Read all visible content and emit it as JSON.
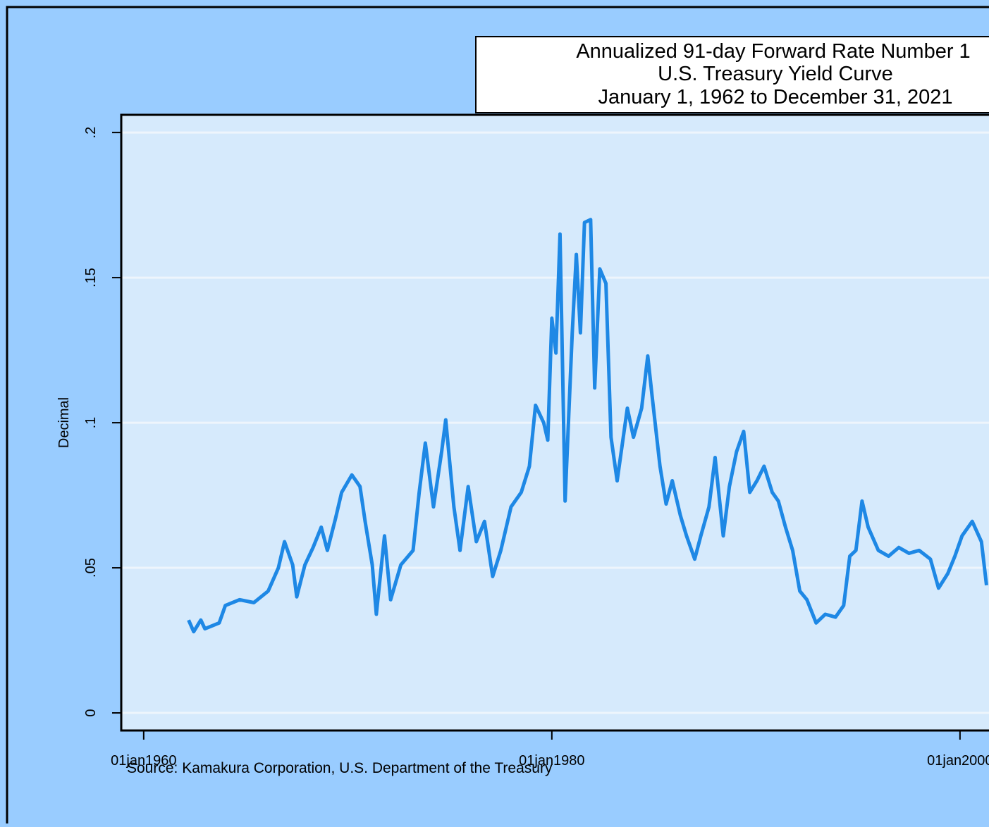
{
  "chart_data": {
    "type": "line",
    "title": [
      "Annualized 91-day Forward Rate Number 1",
      "U.S. Treasury Yield Curve",
      "January 1, 1962 to December 31, 2021"
    ],
    "y_label": "Decimal",
    "note": "Source: Kamakura Corporation, U.S. Department of the Treasury",
    "x": [
      1962.2,
      1962.45,
      1962.8,
      1963.0,
      1963.7,
      1964.0,
      1964.7,
      1965.4,
      1966.1,
      1966.6,
      1966.9,
      1967.3,
      1967.5,
      1967.9,
      1968.3,
      1968.7,
      1969.0,
      1969.4,
      1969.7,
      1970.2,
      1970.6,
      1970.85,
      1971.2,
      1971.4,
      1971.8,
      1972.1,
      1972.6,
      1973.2,
      1973.5,
      1973.8,
      1974.2,
      1974.6,
      1974.8,
      1975.2,
      1975.5,
      1975.9,
      1976.3,
      1976.7,
      1977.1,
      1977.5,
      1978.0,
      1978.5,
      1978.9,
      1979.2,
      1979.6,
      1979.8,
      1980.0,
      1980.2,
      1980.4,
      1980.65,
      1981.0,
      1981.2,
      1981.4,
      1981.6,
      1981.9,
      1982.1,
      1982.35,
      1982.65,
      1982.9,
      1983.2,
      1983.7,
      1984.0,
      1984.4,
      1984.7,
      1984.9,
      1985.3,
      1985.6,
      1985.9,
      1986.3,
      1986.6,
      1987.0,
      1987.3,
      1987.7,
      1988.0,
      1988.4,
      1988.7,
      1989.05,
      1989.4,
      1989.7,
      1990.05,
      1990.4,
      1990.8,
      1991.1,
      1991.45,
      1991.8,
      1992.15,
      1992.5,
      1992.95,
      1993.4,
      1993.9,
      1994.3,
      1994.6,
      1994.9,
      1995.2,
      1995.5,
      1996.0,
      1996.5,
      1997.0,
      1997.5,
      1998.0,
      1998.55,
      1998.95,
      1999.4,
      1999.75,
      2000.1,
      2000.6,
      2001.05,
      2001.3
    ],
    "series": [
      {
        "color": "#1e88e5",
        "values": [
          0.032,
          0.028,
          0.032,
          0.029,
          0.031,
          0.037,
          0.039,
          0.038,
          0.042,
          0.05,
          0.059,
          0.051,
          0.04,
          0.051,
          0.057,
          0.064,
          0.056,
          0.067,
          0.076,
          0.082,
          0.078,
          0.066,
          0.051,
          0.034,
          0.061,
          0.039,
          0.051,
          0.056,
          0.076,
          0.093,
          0.071,
          0.09,
          0.101,
          0.071,
          0.056,
          0.078,
          0.059,
          0.066,
          0.047,
          0.056,
          0.071,
          0.076,
          0.085,
          0.106,
          0.1,
          0.094,
          0.136,
          0.124,
          0.165,
          0.073,
          0.131,
          0.158,
          0.131,
          0.169,
          0.17,
          0.112,
          0.153,
          0.148,
          0.095,
          0.08,
          0.105,
          0.095,
          0.105,
          0.123,
          0.11,
          0.085,
          0.072,
          0.08,
          0.068,
          0.061,
          0.053,
          0.061,
          0.071,
          0.088,
          0.061,
          0.078,
          0.09,
          0.097,
          0.076,
          0.08,
          0.085,
          0.076,
          0.073,
          0.064,
          0.056,
          0.042,
          0.039,
          0.031,
          0.034,
          0.033,
          0.037,
          0.054,
          0.056,
          0.073,
          0.064,
          0.056,
          0.054,
          0.057,
          0.055,
          0.056,
          0.053,
          0.043,
          0.048,
          0.054,
          0.061,
          0.066,
          0.059,
          0.044
        ]
      }
    ],
    "xlim": [
      1958.9,
      2023
    ],
    "xticks": [
      {
        "value": 1960,
        "label": "01jan1960"
      },
      {
        "value": 1980,
        "label": "01jan1980"
      },
      {
        "value": 2000,
        "label": "01jan2000"
      }
    ],
    "ylim": [
      -0.00606,
      0.2061
    ],
    "yticks": [
      0,
      {
        "value": 0.05,
        "label": ".05"
      },
      {
        "value": 0.1,
        "label": ".1"
      },
      {
        "value": 0.15,
        "label": ".15"
      },
      {
        "value": 0.2,
        "label": ".2"
      }
    ],
    "grid": true
  }
}
